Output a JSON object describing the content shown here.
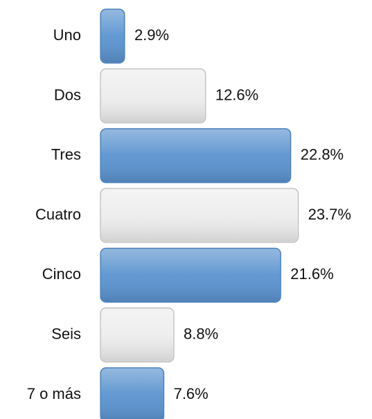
{
  "chart_data": {
    "type": "bar",
    "orientation": "horizontal",
    "categories": [
      "Uno",
      "Dos",
      "Tres",
      "Cuatro",
      "Cinco",
      "Seis",
      "7 o más"
    ],
    "values": [
      2.9,
      12.6,
      22.8,
      23.7,
      21.6,
      8.8,
      7.6
    ],
    "value_labels": [
      "2.9%",
      "12.6%",
      "22.8%",
      "23.7%",
      "21.6%",
      "8.8%",
      "7.6%"
    ],
    "colors": [
      "#5b93cf",
      "#ededed",
      "#5b93cf",
      "#ededed",
      "#5b93cf",
      "#ededed",
      "#5b93cf"
    ]
  }
}
